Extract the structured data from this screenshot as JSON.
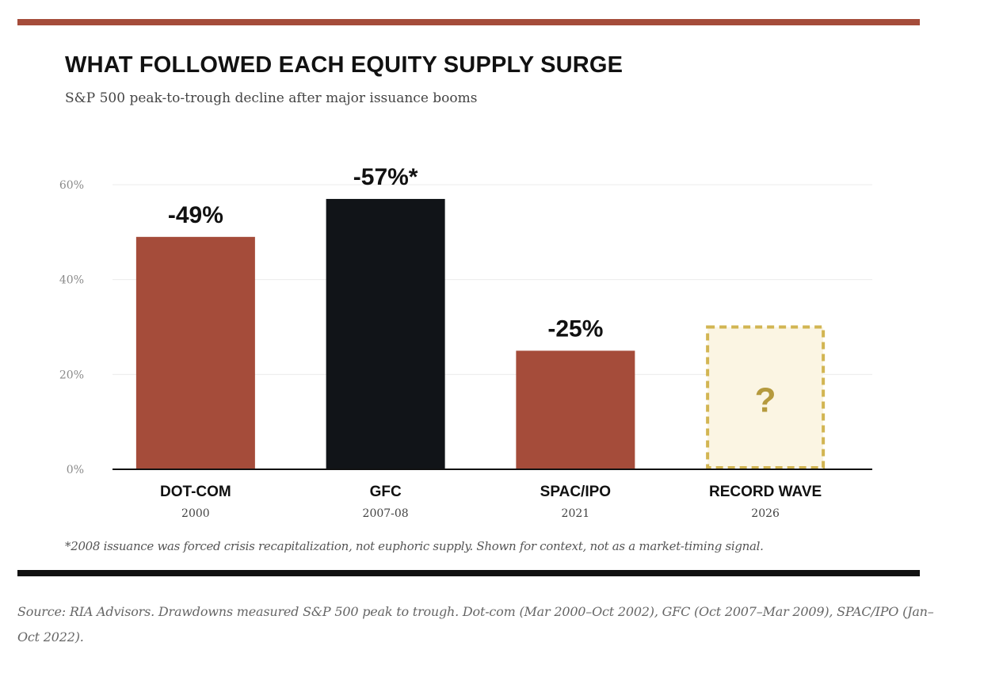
{
  "header": {
    "title": "WHAT FOLLOWED EACH EQUITY SUPPLY SURGE",
    "subtitle": "S&P 500 peak-to-trough decline after major issuance booms"
  },
  "footnote": "*2008 issuance was forced crisis recapitalization, not euphoric supply. Shown for context, not as a market-timing signal.",
  "source": "Source: RIA Advisors. Drawdowns measured S&P 500 peak to trough. Dot-com (Mar 2000–Oct 2002), GFC (Oct 2007–Mar 2009), SPAC/IPO (Jan–Oct 2022).",
  "colors": {
    "accent": "#a54c3a",
    "dark": "#111418",
    "placeholder_border": "#d2b552",
    "placeholder_fill": "#fbf5e3",
    "placeholder_text": "#b59a3e"
  },
  "chart_data": {
    "type": "bar",
    "title": "WHAT FOLLOWED EACH EQUITY SUPPLY SURGE",
    "subtitle": "S&P 500 peak-to-trough decline after major issuance booms",
    "xlabel": "",
    "ylabel": "",
    "ylim": [
      0,
      60
    ],
    "yticks": [
      0,
      20,
      40,
      60
    ],
    "ytick_labels": [
      "0%",
      "20%",
      "40%",
      "60%"
    ],
    "grid": true,
    "categories": [
      "DOT-COM",
      "GFC",
      "SPAC/IPO",
      "RECORD WAVE"
    ],
    "sublabels": [
      "2000",
      "2007-08",
      "2021",
      "2026"
    ],
    "values": [
      49,
      57,
      25,
      null
    ],
    "value_labels": [
      "-49%",
      "-57%*",
      "-25%",
      "?"
    ],
    "bar_colors": [
      "#a54c3a",
      "#111418",
      "#a54c3a",
      "#fbf5e3"
    ],
    "placeholder": {
      "category": "RECORD WAVE",
      "value": 30,
      "style": "dashed outline",
      "label": "?"
    }
  }
}
